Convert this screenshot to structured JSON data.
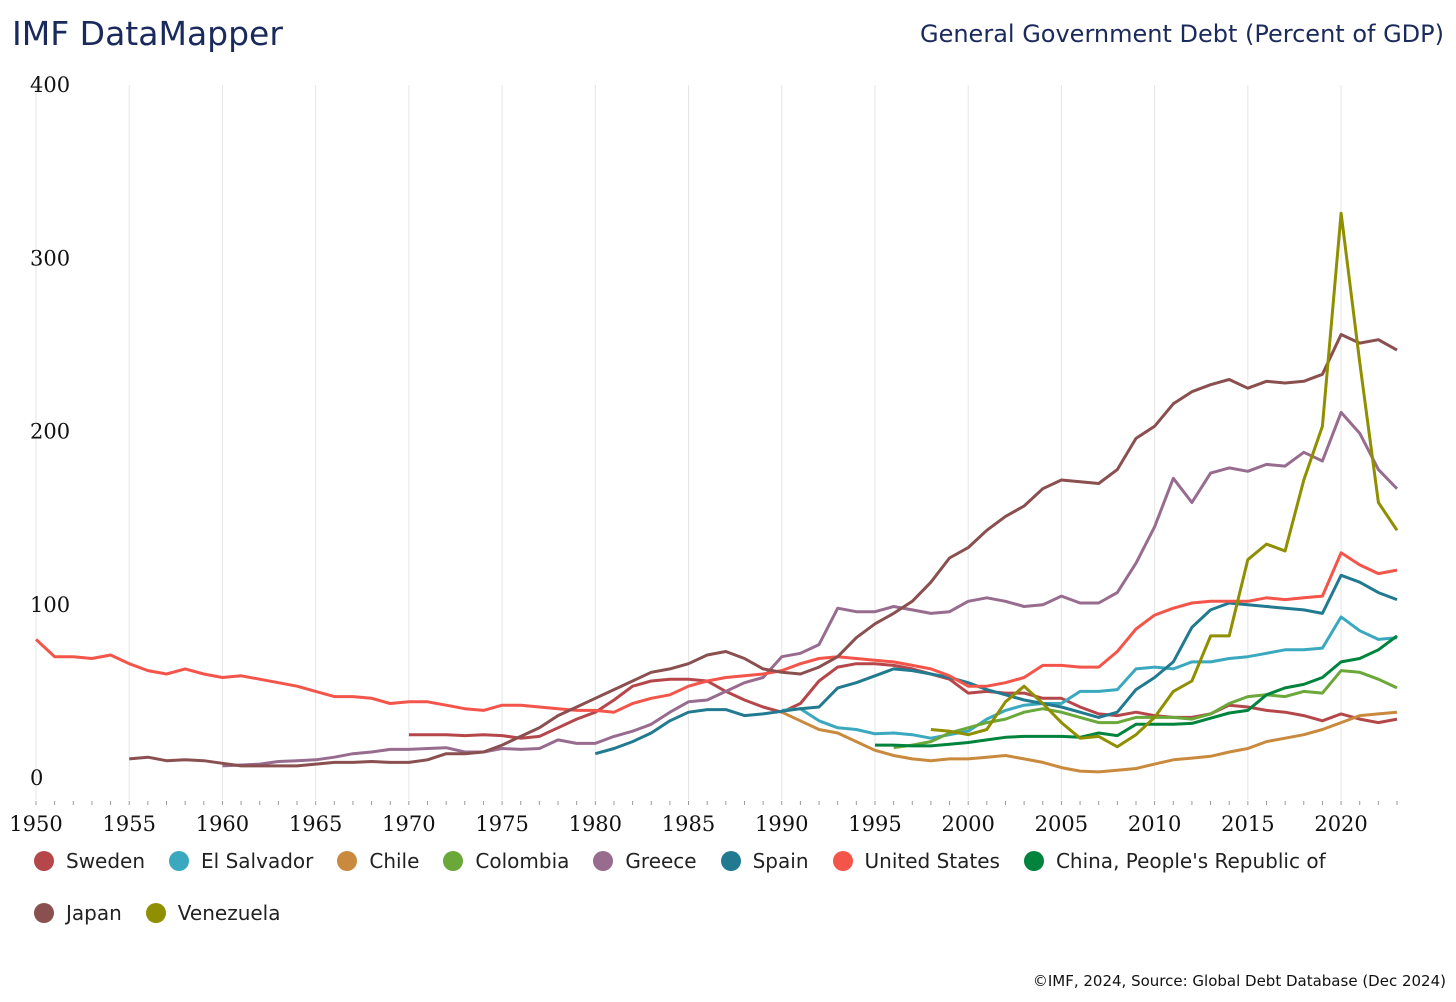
{
  "header": {
    "brand": "IMF DataMapper",
    "title": "General Government Debt (Percent of GDP)"
  },
  "source": "©IMF, 2024, Source: Global Debt Database (Dec 2024)",
  "chart_data": {
    "type": "line",
    "title": "General Government Debt (Percent of GDP)",
    "xlabel": "",
    "ylabel": "",
    "xlim": [
      1950,
      2023
    ],
    "ylim": [
      0,
      400
    ],
    "xticks": [
      1950,
      1955,
      1960,
      1965,
      1970,
      1975,
      1980,
      1985,
      1990,
      1995,
      2000,
      2005,
      2010,
      2015,
      2020
    ],
    "yticks": [
      0,
      100,
      200,
      300,
      400
    ],
    "grid": "vertical",
    "legend": "bottom",
    "series": [
      {
        "name": "Sweden",
        "color": "#b5474b",
        "start": 1970,
        "values": [
          25,
          25,
          25,
          24.5,
          25,
          24.5,
          23,
          24,
          29,
          34,
          38,
          45,
          53,
          56,
          57,
          57,
          56,
          50,
          45,
          41,
          38,
          43,
          56,
          64,
          66,
          66,
          65,
          63,
          60,
          57,
          49,
          50,
          49,
          49,
          46,
          46,
          41,
          37,
          36,
          38,
          36,
          35,
          35,
          37,
          42,
          41,
          39,
          38,
          36,
          33,
          37,
          34,
          32,
          34
        ]
      },
      {
        "name": "El Salvador",
        "color": "#3aa8bf",
        "start": 1990,
        "values": [
          39,
          40,
          33,
          29,
          28,
          25.5,
          26,
          25,
          23,
          25,
          27,
          34,
          39,
          42,
          43,
          43,
          50,
          50,
          51,
          63,
          64,
          63,
          67,
          67,
          69,
          70,
          72,
          74,
          74,
          75,
          93,
          85,
          80,
          81
        ]
      },
      {
        "name": "Chile",
        "color": "#c98a3e",
        "start": 1990,
        "values": [
          38,
          33,
          28,
          26,
          21,
          16,
          13,
          11,
          10,
          11,
          11,
          12,
          13,
          11,
          9,
          6,
          4,
          3.5,
          4.5,
          5.5,
          8,
          10.5,
          11.5,
          12.5,
          15,
          17,
          21,
          23,
          25,
          28,
          32,
          36,
          37,
          38
        ]
      },
      {
        "name": "Colombia",
        "color": "#6aa839",
        "start": 1996,
        "values": [
          17.5,
          19,
          21,
          26,
          29,
          32,
          34,
          38,
          40,
          38,
          35,
          32,
          32,
          35,
          35,
          35,
          34,
          37,
          43,
          47,
          48,
          47,
          50,
          49,
          62,
          61,
          57,
          52
        ]
      },
      {
        "name": "Greece",
        "color": "#976c8f",
        "start": 1960,
        "values": [
          7,
          7.5,
          8,
          9.5,
          10,
          10.5,
          12,
          14,
          15,
          16.5,
          16.5,
          17,
          17.5,
          15,
          15,
          17,
          16.5,
          17,
          22,
          20,
          20,
          24,
          27,
          31,
          38,
          44,
          45,
          50,
          55,
          58,
          70,
          72,
          77,
          98,
          96,
          96,
          99,
          97,
          95,
          96,
          102,
          104,
          102,
          99,
          100,
          105,
          101,
          101,
          107,
          124,
          145,
          173,
          159,
          176,
          179,
          177,
          181,
          180,
          188,
          183,
          211,
          199,
          178,
          167
        ]
      },
      {
        "name": "Spain",
        "color": "#217a8f",
        "start": 1980,
        "values": [
          14,
          17,
          21,
          26,
          33,
          38,
          39.5,
          39.5,
          36,
          37,
          38.5,
          40,
          41,
          52,
          55,
          59,
          63,
          62,
          60,
          58,
          55,
          51,
          48,
          45,
          43,
          41,
          38,
          35,
          38,
          51,
          58,
          67,
          87,
          97,
          101,
          100,
          99,
          98,
          97,
          95,
          117,
          113,
          107,
          103
        ]
      },
      {
        "name": "United States",
        "color": "#f4554a",
        "start": 1950,
        "values": [
          80,
          70,
          70,
          69,
          71,
          66,
          62,
          60,
          63,
          60,
          58,
          59,
          57,
          55,
          53,
          50,
          47,
          47,
          46,
          43,
          44,
          44,
          42,
          40,
          39,
          42,
          42,
          41,
          40,
          39,
          39,
          38,
          43,
          46,
          48,
          53,
          56,
          58,
          59,
          60,
          62,
          66,
          69,
          70,
          69,
          68,
          67,
          65,
          63,
          59,
          53,
          53,
          55,
          58,
          65,
          65,
          64,
          64,
          73,
          86,
          94,
          98,
          101,
          102,
          102,
          102,
          104,
          103,
          104,
          105,
          130,
          123,
          118,
          120
        ]
      },
      {
        "name": "China, People's Republic of",
        "color": "#00843d",
        "start": 1995,
        "values": [
          19,
          19,
          18.5,
          18.5,
          19.5,
          20.5,
          22,
          23.5,
          24,
          24,
          24,
          23.5,
          26,
          24.5,
          31,
          31,
          31,
          31.5,
          34.5,
          37.5,
          39,
          48,
          52,
          54,
          58,
          67,
          69,
          74,
          82
        ]
      },
      {
        "name": "Japan",
        "color": "#8a4f4f",
        "start": 1955,
        "values": [
          11,
          12,
          10,
          10.5,
          10,
          8.5,
          7,
          7,
          7,
          7,
          8,
          9,
          9,
          9.5,
          9,
          9,
          10.5,
          14,
          14,
          15,
          19,
          24,
          29,
          36,
          41,
          46,
          51,
          56,
          61,
          63,
          66,
          71,
          73,
          69,
          63,
          61,
          60,
          64,
          70,
          81,
          89,
          95,
          102,
          113,
          127,
          133,
          143,
          151,
          157,
          167,
          172,
          171,
          170,
          178,
          196,
          203,
          216,
          223,
          227,
          230,
          225,
          229,
          228,
          229,
          233,
          256,
          251,
          253,
          247
        ]
      },
      {
        "name": "Venezuela",
        "color": "#8f8f00",
        "start": 1998,
        "values": [
          28,
          27,
          25,
          28,
          44,
          53,
          43,
          32,
          23,
          24,
          18,
          25,
          35,
          50,
          56,
          82,
          82,
          126,
          135,
          131,
          172,
          203,
          326,
          240,
          159,
          143
        ]
      }
    ]
  }
}
